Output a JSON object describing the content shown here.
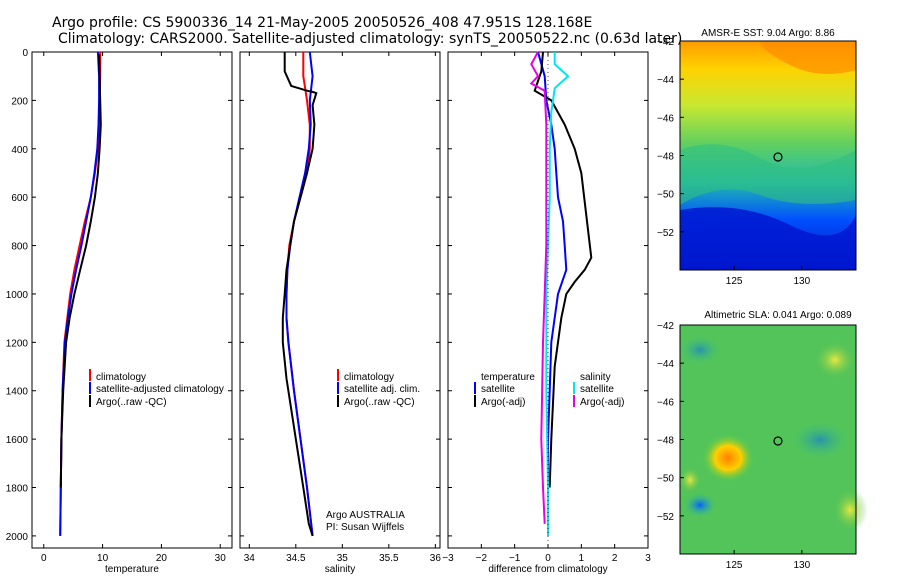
{
  "header": {
    "line1": "Argo profile: CS 5900336_14 21-May-2005 20050526_408 47.951S 128.168E",
    "line2": "Climatology: CARS2000. Satellite-adjusted climatology: synTS_20050522.nc (0.63d later)"
  },
  "colors": {
    "climatology": "#ff0000",
    "satellite": "#0000ff",
    "argo": "#000000",
    "satellite_salinity": "#00e5ee",
    "argo_salinity": "#e600e6"
  },
  "chart_data": [
    {
      "type": "line",
      "panel": "temperature",
      "xlabel": "temperature",
      "xlim": [
        -2,
        32
      ],
      "ylim": [
        2050,
        0
      ],
      "xticks": [
        "0",
        "10",
        "20",
        "30"
      ],
      "yticks": [
        "0",
        "200",
        "400",
        "600",
        "800",
        "1000",
        "1200",
        "1400",
        "1600",
        "1800",
        "2000"
      ],
      "legend": [
        "climatology",
        "satellite-adjusted climatology",
        "Argo(..raw -QC)"
      ],
      "series": [
        {
          "name": "climatology",
          "color_key": "climatology",
          "x": [
            9.6,
            9.6,
            9.5,
            9.4,
            9.2,
            8.7,
            8.0,
            7.0,
            6.1,
            5.2,
            4.5,
            4.0,
            3.5,
            3.2,
            3.0,
            2.9,
            2.8
          ],
          "y": [
            0,
            100,
            200,
            300,
            400,
            500,
            600,
            700,
            800,
            900,
            1000,
            1100,
            1200,
            1400,
            1600,
            1800,
            2000
          ]
        },
        {
          "name": "satellite-adjusted climatology",
          "color_key": "satellite",
          "x": [
            9.2,
            9.4,
            9.4,
            9.3,
            9.1,
            8.6,
            8.0,
            7.2,
            6.4,
            5.5,
            4.7,
            4.1,
            3.6,
            3.2,
            3.0,
            2.9,
            2.8
          ],
          "y": [
            0,
            100,
            200,
            300,
            400,
            500,
            600,
            700,
            800,
            900,
            1000,
            1100,
            1200,
            1400,
            1600,
            1800,
            2000
          ]
        },
        {
          "name": "Argo(..raw -QC)",
          "color_key": "argo",
          "x": [
            9.4,
            9.5,
            9.6,
            9.7,
            9.5,
            9.2,
            8.7,
            8.0,
            7.2,
            6.2,
            5.2,
            4.4,
            3.8,
            3.3,
            3.0,
            2.9
          ],
          "y": [
            10,
            100,
            200,
            300,
            400,
            500,
            600,
            700,
            800,
            900,
            1000,
            1100,
            1200,
            1400,
            1600,
            1800
          ]
        }
      ]
    },
    {
      "type": "line",
      "panel": "salinity",
      "xlabel": "salinity",
      "xlim": [
        33.9,
        36.05
      ],
      "ylim": [
        2050,
        0
      ],
      "xticks": [
        "34",
        "34.5",
        "35",
        "35.5",
        "36"
      ],
      "legend": [
        "climatology",
        "satellite adj. clim.",
        "Argo(..raw -QC)"
      ],
      "annotation": [
        "Argo AUSTRALIA",
        "PI: Susan Wijffels"
      ],
      "series": [
        {
          "name": "climatology",
          "color_key": "climatology",
          "x": [
            34.58,
            34.58,
            34.62,
            34.65,
            34.65,
            34.62,
            34.55,
            34.48,
            34.43,
            34.41,
            34.4,
            34.4,
            34.42,
            34.48,
            34.55,
            34.62,
            34.68
          ],
          "y": [
            0,
            100,
            200,
            300,
            400,
            500,
            600,
            700,
            800,
            900,
            1000,
            1100,
            1200,
            1400,
            1600,
            1800,
            2000
          ]
        },
        {
          "name": "satellite adj. clim.",
          "color_key": "satellite",
          "x": [
            34.65,
            34.68,
            34.65,
            34.66,
            34.64,
            34.6,
            34.54,
            34.48,
            34.44,
            34.41,
            34.4,
            34.4,
            34.42,
            34.48,
            34.55,
            34.62,
            34.68
          ],
          "y": [
            0,
            100,
            200,
            300,
            400,
            500,
            600,
            700,
            800,
            900,
            1000,
            1100,
            1200,
            1400,
            1600,
            1800,
            2000
          ]
        },
        {
          "name": "Argo(..raw -QC)",
          "color_key": "argo",
          "x": [
            34.38,
            34.38,
            34.45,
            34.62,
            34.68,
            34.72,
            34.68,
            34.7,
            34.68,
            34.62,
            34.55,
            34.48,
            34.44,
            34.4,
            34.38,
            34.36,
            34.36,
            34.36,
            34.4,
            34.46,
            34.52,
            34.58,
            34.64,
            34.68
          ],
          "y": [
            0,
            80,
            140,
            160,
            165,
            170,
            220,
            300,
            400,
            500,
            600,
            700,
            800,
            900,
            1000,
            1100,
            1150,
            1200,
            1350,
            1500,
            1650,
            1800,
            1950,
            2000
          ]
        }
      ]
    },
    {
      "type": "line",
      "panel": "difference",
      "xlabel": "difference from climatology",
      "xlim": [
        -3,
        3
      ],
      "ylim": [
        2050,
        0
      ],
      "xticks": [
        "-3",
        "-2",
        "-1",
        "0",
        "1",
        "2",
        "3"
      ],
      "legend_left": [
        "temperature",
        "satellite",
        "Argo(-adj)"
      ],
      "legend_right": [
        "salinity",
        "satellite",
        "Argo(-adj)"
      ],
      "series": [
        {
          "name": "satellite",
          "quantity": "temperature",
          "color_key": "satellite",
          "x": [
            -0.3,
            -0.1,
            -0.05,
            0.1,
            0.2,
            0.25,
            0.3,
            0.45,
            0.5,
            0.55,
            0.3,
            0.1,
            0.05,
            0.0,
            0.0
          ],
          "y": [
            0,
            100,
            200,
            300,
            400,
            500,
            600,
            700,
            800,
            900,
            1000,
            1200,
            1400,
            1600,
            2000
          ]
        },
        {
          "name": "Argo(-adj)",
          "quantity": "temperature",
          "color_key": "argo",
          "x": [
            -0.15,
            -0.2,
            -0.4,
            0.1,
            0.5,
            0.8,
            1.0,
            1.3,
            1.1,
            0.8,
            0.55,
            0.4,
            0.2,
            0.1,
            0.05
          ],
          "y": [
            0,
            80,
            160,
            200,
            300,
            400,
            500,
            850,
            900,
            950,
            1000,
            1100,
            1300,
            1600,
            1800
          ]
        },
        {
          "name": "satellite",
          "quantity": "salinity",
          "color_key": "satellite_salinity",
          "x": [
            0.2,
            0.2,
            0.6,
            0.2,
            0.1,
            0.05,
            0.05,
            0.0,
            -0.05,
            -0.05,
            0.0,
            0.0
          ],
          "y": [
            0,
            50,
            100,
            150,
            250,
            400,
            600,
            800,
            1000,
            1400,
            1800,
            2000
          ]
        },
        {
          "name": "Argo(-adj)",
          "quantity": "salinity",
          "color_key": "argo_salinity",
          "x": [
            -0.3,
            -0.5,
            -0.3,
            -0.5,
            -0.1,
            -0.05,
            -0.05,
            -0.05,
            -0.1,
            -0.15,
            -0.2,
            -0.15,
            -0.1
          ],
          "y": [
            0,
            50,
            100,
            130,
            160,
            300,
            500,
            800,
            1000,
            1200,
            1600,
            1800,
            1950
          ]
        }
      ]
    },
    {
      "type": "heatmap",
      "panel": "sst_map",
      "title": "AMSR-E SST: 9.04 Argo: 8.86",
      "xlim": [
        121,
        134
      ],
      "ylim": [
        -54,
        -42
      ],
      "xticks": [
        "125",
        "130"
      ],
      "yticks": [
        "-42",
        "-44",
        "-46",
        "-48",
        "-50",
        "-52"
      ],
      "marker": {
        "lon": 128.168,
        "lat": -47.951
      }
    },
    {
      "type": "heatmap",
      "panel": "sla_map",
      "title": "Altimetric SLA: 0.041 Argo: 0.089",
      "xlim": [
        121,
        134
      ],
      "ylim": [
        -54,
        -42
      ],
      "xticks": [
        "125",
        "130"
      ],
      "yticks": [
        "-42",
        "-44",
        "-46",
        "-48",
        "-50",
        "-52"
      ],
      "marker": {
        "lon": 128.168,
        "lat": -47.951
      }
    }
  ]
}
